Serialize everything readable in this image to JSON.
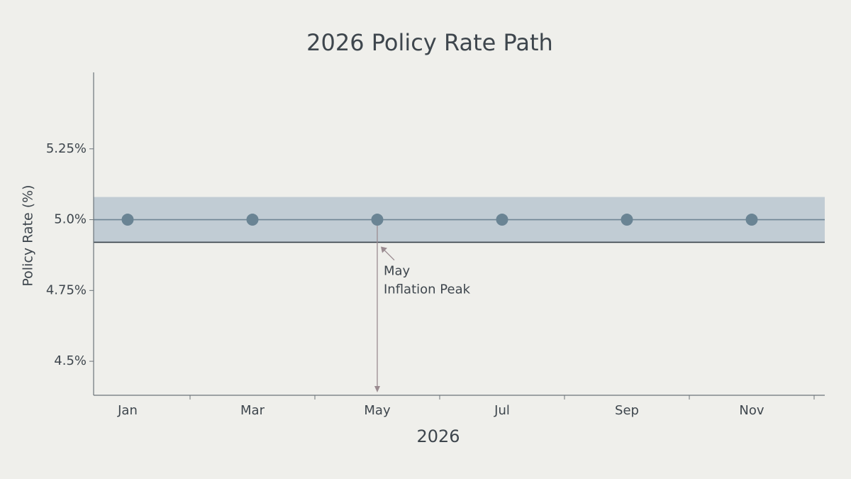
{
  "chart_data": {
    "type": "scatter",
    "title": "2026 Policy Rate Path",
    "x_label": "2026",
    "y_label": "Policy Rate (%)",
    "categories": [
      "Jan",
      null,
      "Mar",
      null,
      "May",
      null,
      "Jul",
      null,
      "Sep",
      null,
      "Nov",
      null
    ],
    "series": [
      {
        "color": "#6a8494",
        "values": [
          5.0,
          null,
          5.0,
          null,
          5.0,
          null,
          5.0,
          null,
          5.0,
          null,
          5.0,
          null
        ]
      }
    ],
    "ylim": [
      4.38,
      5.52
    ],
    "yticks": [
      {
        "value": 4.5,
        "label": "4.5%"
      },
      {
        "value": 4.75,
        "label": "4.75%"
      },
      {
        "value": 5.0,
        "label": "5.0%"
      },
      {
        "value": 5.25,
        "label": "5.25%"
      }
    ],
    "band": {
      "values": [
        4.92,
        5.08
      ],
      "color": "#aebdca"
    },
    "reference_lines": [
      {
        "value": 5.0,
        "color": "#6f8494"
      },
      {
        "value": 4.92,
        "color": "#37414a"
      }
    ],
    "annotation": {
      "lines": [
        "May",
        "Inflation Peak"
      ],
      "color": "#9a8b90"
    }
  }
}
